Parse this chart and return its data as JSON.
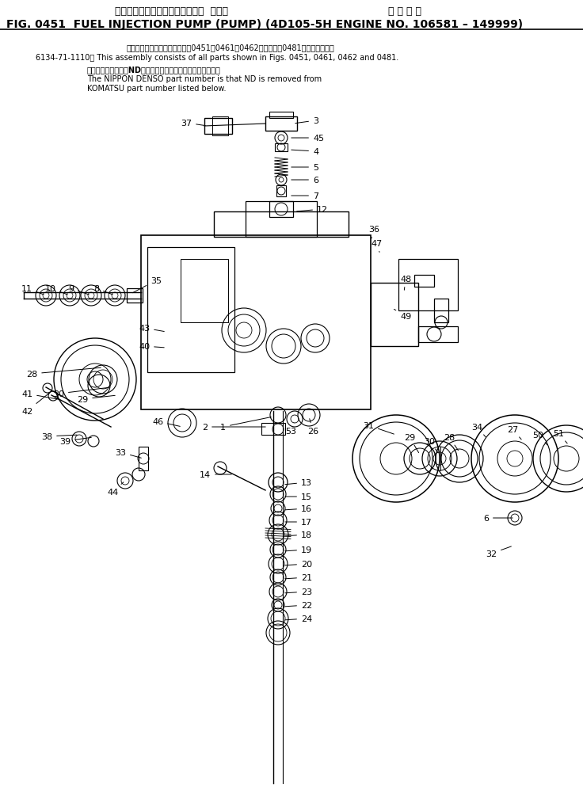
{
  "bg_color": "#ffffff",
  "title_line1_left": "フェエルインジェクションポンプ  ポンプ",
  "title_line1_right": "適 用 号 機",
  "title_line2": "FIG. 0451  FUEL INJECTION PUMP (PUMP) (4D105-5H ENGINE NO. 106581 – 149999)",
  "note1": "このアセンブリの構成部品は図0451、0461、0462図および図0481図を参みます。",
  "note2": "6134-71-1110： This assembly consists of all parts shown in Figs. 0451, 0461, 0462 and 0481.",
  "note3a": "品番のメーカー記号NDを除いたものが日本電球の品番です。",
  "note3b": "The NIPPON DENSO part number is that ND is removed from",
  "note3c": "KOMATSU part number listed below."
}
